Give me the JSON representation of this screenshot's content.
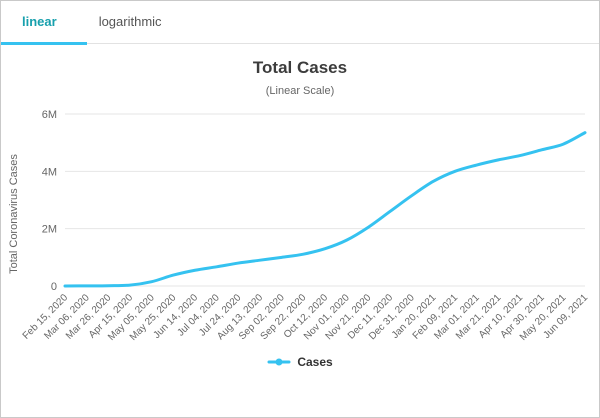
{
  "tabs": [
    {
      "label": "linear",
      "active": true
    },
    {
      "label": "logarithmic",
      "active": false
    }
  ],
  "colors": {
    "series_line": "#35c2f0",
    "active_tab_text": "#17a0ad",
    "tab_underline": "#35c2f0",
    "gridline": "#e6e6e6",
    "axis_text": "#666666"
  },
  "chart_data": {
    "type": "line",
    "title": "Total Cases",
    "subtitle": "(Linear Scale)",
    "xlabel": "",
    "ylabel": "Total Coronavirus Cases",
    "ylim": [
      0,
      6000000
    ],
    "grid": true,
    "legend_position": "bottom",
    "yticks": [
      {
        "value": 0,
        "label": "0"
      },
      {
        "value": 2000000,
        "label": "2M"
      },
      {
        "value": 4000000,
        "label": "4M"
      },
      {
        "value": 6000000,
        "label": "6M"
      }
    ],
    "categories": [
      "Feb 15, 2020",
      "Mar 06, 2020",
      "Mar 26, 2020",
      "Apr 15, 2020",
      "May 05, 2020",
      "May 25, 2020",
      "Jun 14, 2020",
      "Jul 04, 2020",
      "Jul 24, 2020",
      "Aug 13, 2020",
      "Sep 02, 2020",
      "Sep 22, 2020",
      "Oct 12, 2020",
      "Nov 01, 2020",
      "Nov 21, 2020",
      "Dec 11, 2020",
      "Dec 31, 2020",
      "Jan 20, 2021",
      "Feb 09, 2021",
      "Mar 01, 2021",
      "Mar 21, 2021",
      "Apr 10, 2021",
      "Apr 30, 2021",
      "May 20, 2021",
      "Jun 09, 2021"
    ],
    "series": [
      {
        "name": "Cases",
        "color": "#35c2f0",
        "values": [
          0,
          5000,
          10000,
          30000,
          150000,
          380000,
          550000,
          670000,
          800000,
          900000,
          1000000,
          1110000,
          1300000,
          1600000,
          2050000,
          2600000,
          3150000,
          3650000,
          4000000,
          4220000,
          4400000,
          4550000,
          4750000,
          4950000,
          5350000
        ]
      }
    ]
  }
}
